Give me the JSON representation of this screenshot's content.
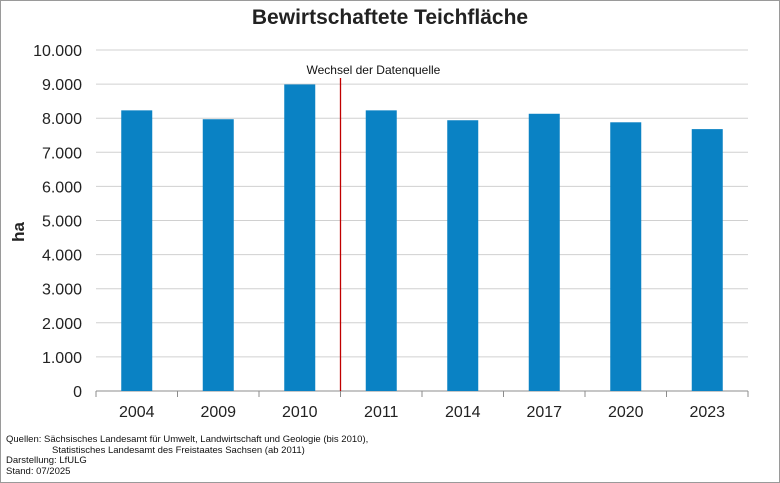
{
  "chart_data": {
    "type": "bar",
    "title": "Bewirtschaftete Teichfläche",
    "ylabel": "ha",
    "xlabel": "",
    "categories": [
      "2004",
      "2009",
      "2010",
      "2011",
      "2014",
      "2017",
      "2020",
      "2023"
    ],
    "values": [
      8230,
      7970,
      8990,
      8230,
      7940,
      8130,
      7880,
      7680
    ],
    "ylim": [
      0,
      10000
    ],
    "yticks": [
      0,
      1000,
      2000,
      3000,
      4000,
      5000,
      6000,
      7000,
      8000,
      9000,
      10000
    ],
    "ytick_labels": [
      "0",
      "1.000",
      "2.000",
      "3.000",
      "4.000",
      "5.000",
      "6.000",
      "7.000",
      "8.000",
      "9.000",
      "10.000"
    ],
    "grid": true,
    "bar_color": "#0a82c4",
    "annotation": {
      "text": "Wechsel der Datenquelle",
      "between": [
        "2010",
        "2011"
      ],
      "color": "#c00000"
    }
  },
  "footer": {
    "sources_line1": "Quellen: Sächsisches Landesamt für Umwelt, Landwirtschaft und Geologie (bis 2010),",
    "sources_line2": "Statistisches Landesamt des Freistaates Sachsen (ab 2011)",
    "darstellung": "Darstellung: LfULG",
    "stand": "Stand: 07/2025"
  }
}
